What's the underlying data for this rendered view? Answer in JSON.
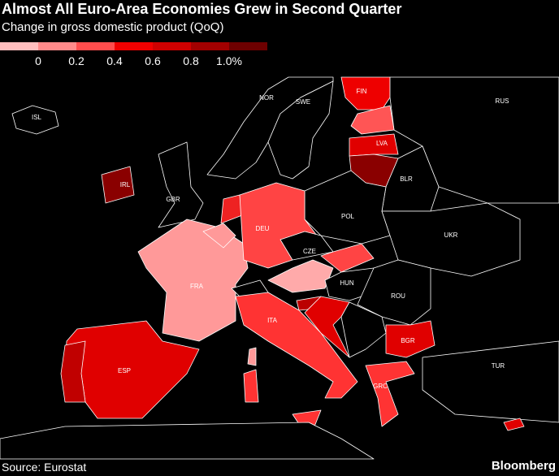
{
  "header": {
    "title": "Almost All Euro-Area Economies Grew in Second Quarter",
    "subtitle": "Change in gross domestic product (QoQ)"
  },
  "legend": {
    "colors": [
      "#ffbdbd",
      "#ff8a8a",
      "#ff4d4d",
      "#f00000",
      "#d00000",
      "#a30000",
      "#6e0000"
    ],
    "labels": [
      "0",
      "0.2",
      "0.4",
      "0.6",
      "0.8",
      "1.0%"
    ]
  },
  "map": {
    "labels": [
      "ISL",
      "NOR",
      "SWE",
      "FIN",
      "RUS",
      "LVA",
      "IRL",
      "GBR",
      "BLR",
      "POL",
      "DEU",
      "CZE",
      "UKR",
      "FRA",
      "HUN",
      "ROU",
      "ITA",
      "BGR",
      "ESP",
      "TUR",
      "GRC"
    ]
  },
  "footer": {
    "source": "Source: Eurostat",
    "brand": "Bloomberg"
  }
}
